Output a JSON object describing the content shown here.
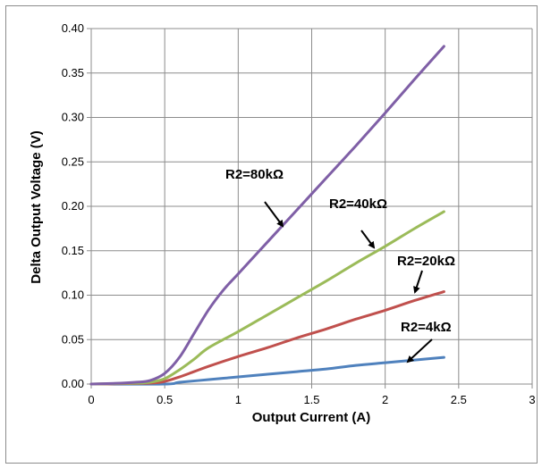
{
  "chart_data": {
    "type": "line",
    "xlabel": "Output Current (A)",
    "ylabel": "Delta Output Voltage (V)",
    "xlim": [
      0,
      3
    ],
    "ylim": [
      0,
      0.4
    ],
    "x_ticks": [
      "0",
      "0.5",
      "1",
      "1.5",
      "2",
      "2.5",
      "3"
    ],
    "y_ticks": [
      "0.00",
      "0.05",
      "0.10",
      "0.15",
      "0.20",
      "0.25",
      "0.30",
      "0.35",
      "0.40"
    ],
    "grid": true,
    "series": [
      {
        "name": "R2=80kΩ",
        "color": "#7f5fa6",
        "points": [
          [
            0,
            0
          ],
          [
            0.2,
            0.001
          ],
          [
            0.3,
            0.002
          ],
          [
            0.4,
            0.004
          ],
          [
            0.5,
            0.012
          ],
          [
            0.6,
            0.03
          ],
          [
            0.7,
            0.057
          ],
          [
            0.8,
            0.084
          ],
          [
            0.9,
            0.106
          ],
          [
            1.0,
            0.124
          ],
          [
            1.2,
            0.16
          ],
          [
            1.4,
            0.196
          ],
          [
            1.6,
            0.232
          ],
          [
            1.8,
            0.268
          ],
          [
            2.0,
            0.305
          ],
          [
            2.2,
            0.343
          ],
          [
            2.4,
            0.38
          ]
        ]
      },
      {
        "name": "R2=40kΩ",
        "color": "#9bbb59",
        "points": [
          [
            0,
            0
          ],
          [
            0.3,
            0.001
          ],
          [
            0.4,
            0.002
          ],
          [
            0.5,
            0.006
          ],
          [
            0.6,
            0.016
          ],
          [
            0.7,
            0.028
          ],
          [
            0.8,
            0.041
          ],
          [
            1.0,
            0.059
          ],
          [
            1.2,
            0.078
          ],
          [
            1.4,
            0.097
          ],
          [
            1.6,
            0.116
          ],
          [
            1.8,
            0.136
          ],
          [
            2.0,
            0.155
          ],
          [
            2.2,
            0.175
          ],
          [
            2.4,
            0.194
          ]
        ]
      },
      {
        "name": "R2=20kΩ",
        "color": "#c0504d",
        "points": [
          [
            0,
            0
          ],
          [
            0.4,
            0.001
          ],
          [
            0.5,
            0.003
          ],
          [
            0.6,
            0.008
          ],
          [
            0.7,
            0.014
          ],
          [
            0.8,
            0.02
          ],
          [
            1.0,
            0.031
          ],
          [
            1.2,
            0.041
          ],
          [
            1.4,
            0.052
          ],
          [
            1.6,
            0.062
          ],
          [
            1.8,
            0.073
          ],
          [
            2.0,
            0.083
          ],
          [
            2.2,
            0.094
          ],
          [
            2.4,
            0.104
          ]
        ]
      },
      {
        "name": "R2=4kΩ",
        "color": "#4f81bd",
        "points": [
          [
            0,
            0
          ],
          [
            0.5,
            0.0
          ],
          [
            0.6,
            0.002
          ],
          [
            0.8,
            0.005
          ],
          [
            1.0,
            0.008
          ],
          [
            1.2,
            0.011
          ],
          [
            1.4,
            0.014
          ],
          [
            1.6,
            0.017
          ],
          [
            1.8,
            0.021
          ],
          [
            2.0,
            0.024
          ],
          [
            2.2,
            0.027
          ],
          [
            2.4,
            0.03
          ]
        ]
      }
    ],
    "annotations": [
      {
        "label": "R2=80kΩ",
        "series": 0
      },
      {
        "label": "R2=40kΩ",
        "series": 1
      },
      {
        "label": "R2=20kΩ",
        "series": 2
      },
      {
        "label": "R2=4kΩ",
        "series": 3
      }
    ]
  }
}
